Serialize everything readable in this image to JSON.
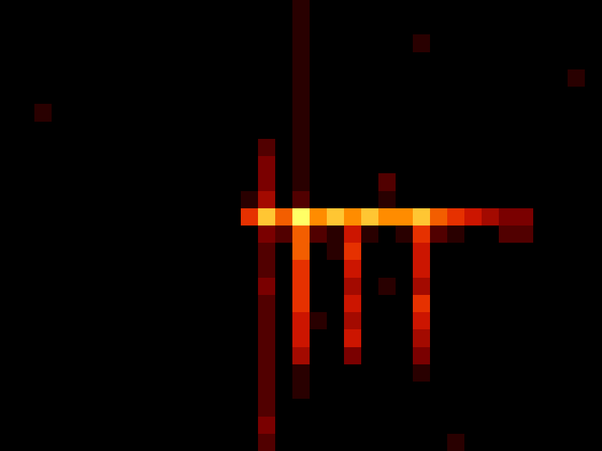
{
  "chart_data": {
    "type": "heatmap",
    "color": "hot",
    "tick_labels": false,
    "zlim": [
      0,
      10
    ],
    "cells": [
      [
        0,
        0,
        0,
        0,
        0,
        0,
        0,
        0,
        0,
        0,
        0,
        0,
        0,
        0,
        0,
        0,
        0,
        1,
        0,
        0,
        0,
        0,
        0,
        0,
        0,
        0,
        0,
        0,
        0,
        0,
        0,
        0,
        0,
        0,
        0
      ],
      [
        0,
        0,
        0,
        0,
        0,
        0,
        0,
        0,
        0,
        0,
        0,
        0,
        0,
        0,
        0,
        0,
        0,
        1,
        0,
        0,
        0,
        0,
        0,
        0,
        0,
        0,
        0,
        0,
        0,
        0,
        0,
        0,
        0,
        0,
        0
      ],
      [
        0,
        0,
        0,
        0,
        0,
        0,
        0,
        0,
        0,
        0,
        0,
        0,
        0,
        0,
        0,
        0,
        0,
        1,
        0,
        0,
        0,
        0,
        0,
        0,
        1,
        0,
        0,
        0,
        0,
        0,
        0,
        0,
        0,
        0,
        0
      ],
      [
        0,
        0,
        0,
        0,
        0,
        0,
        0,
        0,
        0,
        0,
        0,
        0,
        0,
        0,
        0,
        0,
        0,
        1,
        0,
        0,
        0,
        0,
        0,
        0,
        0,
        0,
        0,
        0,
        0,
        0,
        0,
        0,
        0,
        0,
        0
      ],
      [
        0,
        0,
        0,
        0,
        0,
        0,
        0,
        0,
        0,
        0,
        0,
        0,
        0,
        0,
        0,
        0,
        0,
        1,
        0,
        0,
        0,
        0,
        0,
        0,
        0,
        0,
        0,
        0,
        0,
        0,
        0,
        0,
        0,
        1,
        0
      ],
      [
        0,
        0,
        0,
        0,
        0,
        0,
        0,
        0,
        0,
        0,
        0,
        0,
        0,
        0,
        0,
        0,
        0,
        1,
        0,
        0,
        0,
        0,
        0,
        0,
        0,
        0,
        0,
        0,
        0,
        0,
        0,
        0,
        0,
        0,
        0
      ],
      [
        0,
        0,
        1,
        0,
        0,
        0,
        0,
        0,
        0,
        0,
        0,
        0,
        0,
        0,
        0,
        0,
        0,
        1,
        0,
        0,
        0,
        0,
        0,
        0,
        0,
        0,
        0,
        0,
        0,
        0,
        0,
        0,
        0,
        0,
        0
      ],
      [
        0,
        0,
        0,
        0,
        0,
        0,
        0,
        0,
        0,
        0,
        0,
        0,
        0,
        0,
        0,
        0,
        0,
        1,
        0,
        0,
        0,
        0,
        0,
        0,
        0,
        0,
        0,
        0,
        0,
        0,
        0,
        0,
        0,
        0,
        0
      ],
      [
        0,
        0,
        0,
        0,
        0,
        0,
        0,
        0,
        0,
        0,
        0,
        0,
        0,
        0,
        0,
        2,
        0,
        1,
        0,
        0,
        0,
        0,
        0,
        0,
        0,
        0,
        0,
        0,
        0,
        0,
        0,
        0,
        0,
        0,
        0
      ],
      [
        0,
        0,
        0,
        0,
        0,
        0,
        0,
        0,
        0,
        0,
        0,
        0,
        0,
        0,
        0,
        3,
        0,
        1,
        0,
        0,
        0,
        0,
        0,
        0,
        0,
        0,
        0,
        0,
        0,
        0,
        0,
        0,
        0,
        0,
        0
      ],
      [
        0,
        0,
        0,
        0,
        0,
        0,
        0,
        0,
        0,
        0,
        0,
        0,
        0,
        0,
        0,
        3,
        0,
        1,
        0,
        0,
        0,
        0,
        2,
        0,
        0,
        0,
        0,
        0,
        0,
        0,
        0,
        0,
        0,
        0,
        0
      ],
      [
        0,
        0,
        0,
        0,
        0,
        0,
        0,
        0,
        0,
        0,
        0,
        0,
        0,
        0,
        1,
        4,
        0,
        2,
        0,
        0,
        0,
        0,
        1,
        0,
        0,
        0,
        0,
        0,
        0,
        0,
        0,
        0,
        0,
        0,
        0
      ],
      [
        0,
        0,
        0,
        0,
        0,
        0,
        0,
        0,
        0,
        0,
        0,
        0,
        0,
        0,
        6,
        9,
        7,
        10,
        8,
        9,
        8,
        9,
        8,
        8,
        9,
        7,
        6,
        5,
        4,
        3,
        3,
        0,
        0,
        0,
        0
      ],
      [
        0,
        0,
        0,
        0,
        0,
        0,
        0,
        0,
        0,
        0,
        0,
        0,
        0,
        0,
        0,
        3,
        2,
        7,
        2,
        1,
        5,
        1,
        0,
        1,
        6,
        2,
        1,
        0,
        0,
        2,
        2,
        0,
        0,
        0,
        0
      ],
      [
        0,
        0,
        0,
        0,
        0,
        0,
        0,
        0,
        0,
        0,
        0,
        0,
        0,
        0,
        0,
        2,
        0,
        7,
        0,
        1,
        6,
        0,
        0,
        0,
        5,
        0,
        0,
        0,
        0,
        0,
        0,
        0,
        0,
        0,
        0
      ],
      [
        0,
        0,
        0,
        0,
        0,
        0,
        0,
        0,
        0,
        0,
        0,
        0,
        0,
        0,
        0,
        2,
        0,
        6,
        0,
        0,
        5,
        0,
        0,
        0,
        5,
        0,
        0,
        0,
        0,
        0,
        0,
        0,
        0,
        0,
        0
      ],
      [
        0,
        0,
        0,
        0,
        0,
        0,
        0,
        0,
        0,
        0,
        0,
        0,
        0,
        0,
        0,
        3,
        0,
        6,
        0,
        0,
        4,
        0,
        1,
        0,
        4,
        0,
        0,
        0,
        0,
        0,
        0,
        0,
        0,
        0,
        0
      ],
      [
        0,
        0,
        0,
        0,
        0,
        0,
        0,
        0,
        0,
        0,
        0,
        0,
        0,
        0,
        0,
        2,
        0,
        6,
        0,
        0,
        5,
        0,
        0,
        0,
        6,
        0,
        0,
        0,
        0,
        0,
        0,
        0,
        0,
        0,
        0
      ],
      [
        0,
        0,
        0,
        0,
        0,
        0,
        0,
        0,
        0,
        0,
        0,
        0,
        0,
        0,
        0,
        2,
        0,
        5,
        1,
        0,
        4,
        0,
        0,
        0,
        5,
        0,
        0,
        0,
        0,
        0,
        0,
        0,
        0,
        0,
        0
      ],
      [
        0,
        0,
        0,
        0,
        0,
        0,
        0,
        0,
        0,
        0,
        0,
        0,
        0,
        0,
        0,
        2,
        0,
        5,
        0,
        0,
        5,
        0,
        0,
        0,
        4,
        0,
        0,
        0,
        0,
        0,
        0,
        0,
        0,
        0,
        0
      ],
      [
        0,
        0,
        0,
        0,
        0,
        0,
        0,
        0,
        0,
        0,
        0,
        0,
        0,
        0,
        0,
        2,
        0,
        4,
        0,
        0,
        3,
        0,
        0,
        0,
        3,
        0,
        0,
        0,
        0,
        0,
        0,
        0,
        0,
        0,
        0
      ],
      [
        0,
        0,
        0,
        0,
        0,
        0,
        0,
        0,
        0,
        0,
        0,
        0,
        0,
        0,
        0,
        2,
        0,
        1,
        0,
        0,
        0,
        0,
        0,
        0,
        1,
        0,
        0,
        0,
        0,
        0,
        0,
        0,
        0,
        0,
        0
      ],
      [
        0,
        0,
        0,
        0,
        0,
        0,
        0,
        0,
        0,
        0,
        0,
        0,
        0,
        0,
        0,
        2,
        0,
        1,
        0,
        0,
        0,
        0,
        0,
        0,
        0,
        0,
        0,
        0,
        0,
        0,
        0,
        0,
        0,
        0,
        0
      ],
      [
        0,
        0,
        0,
        0,
        0,
        0,
        0,
        0,
        0,
        0,
        0,
        0,
        0,
        0,
        0,
        2,
        0,
        0,
        0,
        0,
        0,
        0,
        0,
        0,
        0,
        0,
        0,
        0,
        0,
        0,
        0,
        0,
        0,
        0,
        0
      ],
      [
        0,
        0,
        0,
        0,
        0,
        0,
        0,
        0,
        0,
        0,
        0,
        0,
        0,
        0,
        0,
        3,
        0,
        0,
        0,
        0,
        0,
        0,
        0,
        0,
        0,
        0,
        0,
        0,
        0,
        0,
        0,
        0,
        0,
        0,
        0
      ],
      [
        0,
        0,
        0,
        0,
        0,
        0,
        0,
        0,
        0,
        0,
        0,
        0,
        0,
        0,
        0,
        2,
        0,
        0,
        0,
        0,
        0,
        0,
        0,
        0,
        0,
        0,
        1,
        0,
        0,
        0,
        0,
        0,
        0,
        0,
        0
      ]
    ]
  }
}
